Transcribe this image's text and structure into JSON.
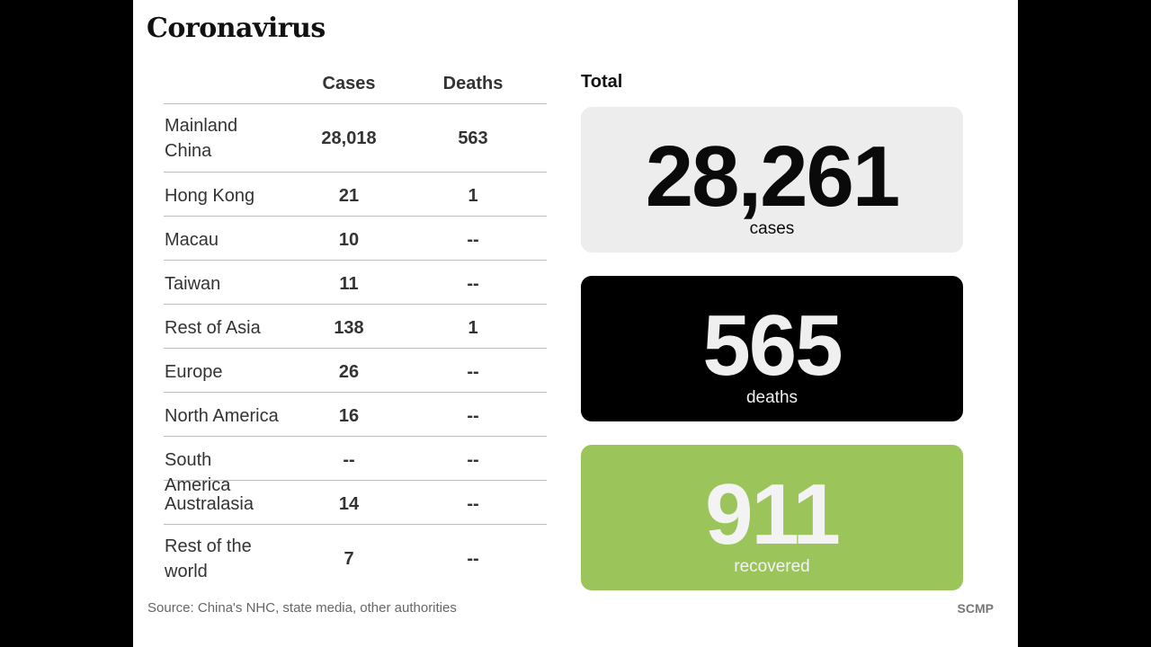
{
  "title": "Coronavirus",
  "table": {
    "headers": {
      "cases": "Cases",
      "deaths": "Deaths"
    },
    "rows": [
      {
        "region": "Mainland China",
        "cases": "28,018",
        "deaths": "563"
      },
      {
        "region": "Hong Kong",
        "cases": "21",
        "deaths": "1"
      },
      {
        "region": "Macau",
        "cases": "10",
        "deaths": "--"
      },
      {
        "region": "Taiwan",
        "cases": "11",
        "deaths": "--"
      },
      {
        "region": "Rest of Asia",
        "cases": "138",
        "deaths": "1"
      },
      {
        "region": "Europe",
        "cases": "26",
        "deaths": "--"
      },
      {
        "region": "North America",
        "cases": "16",
        "deaths": "--"
      },
      {
        "region": "South America",
        "cases": "--",
        "deaths": "--"
      },
      {
        "region": "Australasia",
        "cases": "14",
        "deaths": "--"
      },
      {
        "region": "Rest of the world",
        "cases": "7",
        "deaths": "--"
      }
    ]
  },
  "totals": {
    "label": "Total",
    "cases": {
      "value": "28,261",
      "label": "cases"
    },
    "deaths": {
      "value": "565",
      "label": "deaths"
    },
    "recovered": {
      "value": "911",
      "label": "recovered"
    }
  },
  "colors": {
    "cases_card": "#ededed",
    "deaths_card": "#000000",
    "recovered_card": "#9bc45a"
  },
  "footer": {
    "source": "Source: China's NHC, state media, other authorities",
    "brand": "SCMP"
  }
}
